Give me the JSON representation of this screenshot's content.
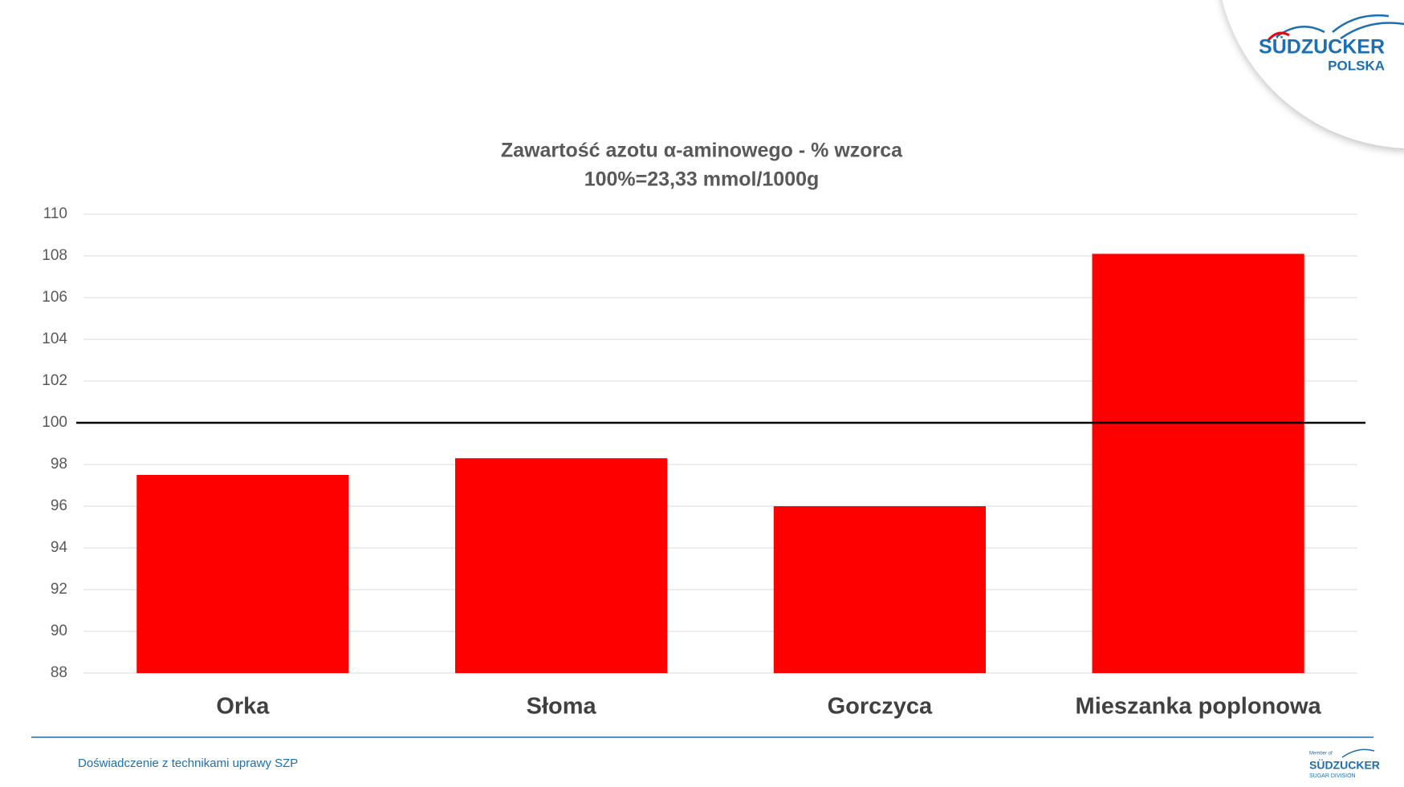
{
  "chart_data": {
    "type": "bar",
    "title": "Zawartość azotu α-aminowego - % wzorca",
    "subtitle": "100%=23,33 mmol/1000g",
    "categories": [
      "Orka",
      "Słoma",
      "Gorczyca",
      "Mieszanka poplonowa"
    ],
    "values": [
      97.5,
      98.3,
      96.0,
      108.1
    ],
    "color": "#ff0000",
    "ylim": [
      88,
      110
    ],
    "yticks": [
      88,
      90,
      92,
      94,
      96,
      98,
      100,
      102,
      104,
      106,
      108,
      110
    ],
    "grid": true,
    "reference_line": 100
  },
  "logo": {
    "name": "SÜDZUCKER",
    "region": "POLSKA"
  },
  "footer": {
    "text": "Doświadczenie z technikami uprawy SZP"
  },
  "footer_logo": {
    "member": "Member of",
    "name": "SÜDZUCKER",
    "division": "SUGAR DIVISION"
  }
}
